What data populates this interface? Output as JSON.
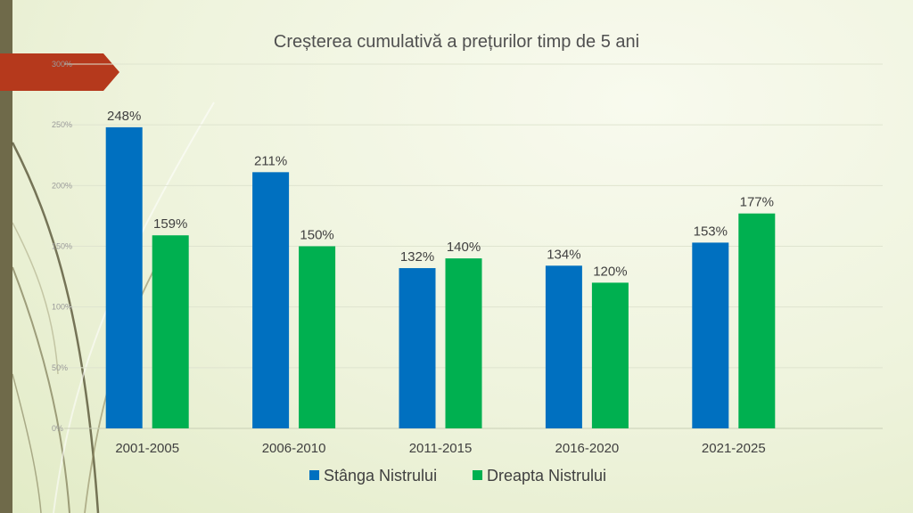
{
  "colors": {
    "series_blue": "#0070c0",
    "series_green": "#00b050",
    "accent_tab": "#b5391c",
    "left_bar": "#6f6a4a",
    "gridline": "#dfe4cf"
  },
  "chart_data": {
    "type": "bar",
    "title": "Creșterea cumulativă a prețurilor timp de 5 ani",
    "xlabel": "",
    "ylabel": "",
    "categories": [
      "2001-2005",
      "2006-2010",
      "2011-2015",
      "2016-2020",
      "2021-2025"
    ],
    "series": [
      {
        "name": "Stânga Nistrului",
        "color": "#0070c0",
        "values": [
          248,
          211,
          132,
          134,
          153
        ],
        "labels": [
          "248%",
          "211%",
          "132%",
          "134%",
          "153%"
        ]
      },
      {
        "name": "Dreapta Nistrului",
        "color": "#00b050",
        "values": [
          159,
          150,
          140,
          120,
          177
        ],
        "labels": [
          "159%",
          "150%",
          "140%",
          "120%",
          "177%"
        ]
      }
    ],
    "ylim": [
      0,
      300
    ],
    "yticks": [
      0,
      50,
      100,
      150,
      200,
      250,
      300
    ],
    "ytick_labels": [
      "0%",
      "50%",
      "100%",
      "150%",
      "200%",
      "250%",
      "300%"
    ],
    "grid": true,
    "legend": "bottom"
  }
}
